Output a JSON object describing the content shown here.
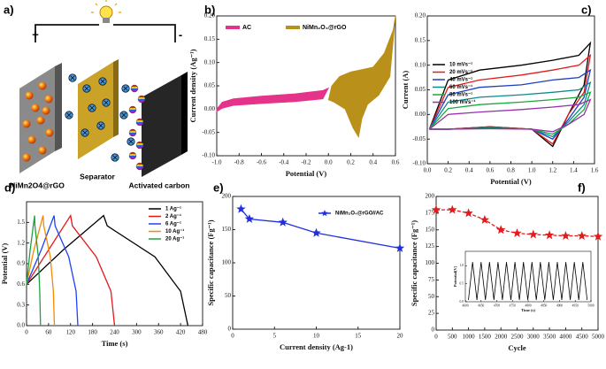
{
  "schematic": {
    "panel_label": "a)",
    "plus_sign": "+",
    "minus_sign": "-",
    "labels": [
      "NiMn2O4@rGO",
      "Separator",
      "Activated carbon"
    ]
  },
  "chart_data": [
    {
      "type": "area",
      "panel_label": "b)",
      "xlabel": "Potential (V)",
      "ylabel": "Current density (Ag⁻¹)",
      "legend": "top",
      "xlim": [
        -1.0,
        0.6
      ],
      "xticks": [
        {
          "value": -1.0,
          "label": "-1.0"
        },
        -0.8,
        -0.6,
        -0.4,
        -0.2,
        {
          "value": 0,
          "label": "0.0"
        },
        0.2,
        0.4,
        0.6
      ],
      "ylim": [
        -0.1,
        0.2
      ],
      "yticks": [
        {
          "value": -0.1,
          "label": "-0.10"
        },
        -0.05,
        {
          "value": 0,
          "label": "0.00"
        },
        0.05,
        {
          "value": 0.1,
          "label": "0.10"
        },
        0.15,
        {
          "value": 0.2,
          "label": "0.20"
        }
      ],
      "series": [
        {
          "name": "AC",
          "color": "#e6338a",
          "x": [
            -1.0,
            -0.95,
            -0.85,
            -0.6,
            -0.3,
            -0.05,
            0,
            -0.05,
            -0.3,
            -0.6,
            -0.85,
            -0.95,
            -1.0
          ],
          "values": [
            0,
            0.015,
            0.022,
            0.028,
            0.033,
            0.04,
            0.045,
            0.022,
            0.016,
            0.012,
            0.008,
            0.002,
            -0.005
          ]
        },
        {
          "name": "NiMn₂O₄@rGO",
          "color": "#b8901a",
          "x": [
            0,
            0.03,
            0.1,
            0.2,
            0.3,
            0.4,
            0.5,
            0.58,
            0.6,
            0.55,
            0.45,
            0.35,
            0.3,
            0.27,
            0.22,
            0.15,
            0.05,
            0
          ],
          "values": [
            0.02,
            0.05,
            0.07,
            0.08,
            0.085,
            0.09,
            0.12,
            0.17,
            0.2,
            0.07,
            0.03,
            0.01,
            -0.02,
            -0.06,
            -0.04,
            0,
            0.015,
            0.02
          ]
        }
      ]
    },
    {
      "type": "line",
      "panel_label": "c)",
      "xlabel": "Potential (V)",
      "ylabel": "Current (A)",
      "legend": "center left",
      "xlim": [
        0,
        1.6
      ],
      "xticks": [
        {
          "value": 0,
          "label": "0.0"
        },
        0.2,
        0.4,
        0.6,
        0.8,
        {
          "value": 1,
          "label": "1.0"
        },
        1.2,
        1.4,
        1.6
      ],
      "ylim": [
        -0.1,
        0.2
      ],
      "yticks": [
        {
          "value": -0.1,
          "label": "-0.10"
        },
        -0.05,
        {
          "value": 0,
          "label": "0.00"
        },
        0.05,
        {
          "value": 0.1,
          "label": "0.10"
        },
        0.15,
        {
          "value": 0.2,
          "label": "0.20"
        }
      ],
      "x": [
        0.02,
        0.2,
        0.5,
        0.9,
        1.2,
        1.45,
        1.56,
        1.5,
        1.35,
        1.2,
        1.0,
        0.6,
        0.2,
        0.02
      ],
      "series": [
        {
          "name": "10 mVs⁻¹",
          "color": "#000000",
          "values": [
            -0.03,
            0.07,
            0.09,
            0.1,
            0.11,
            0.12,
            0.145,
            0.06,
            0,
            -0.065,
            -0.03,
            -0.025,
            -0.03,
            -0.03
          ]
        },
        {
          "name": "20 mVs⁻¹",
          "color": "#e31a1c",
          "values": [
            -0.03,
            0.055,
            0.07,
            0.08,
            0.09,
            0.1,
            0.12,
            0.045,
            0,
            -0.06,
            -0.03,
            -0.025,
            -0.03,
            -0.03
          ]
        },
        {
          "name": "40 mVs⁻¹",
          "color": "#1f3fbf",
          "values": [
            -0.03,
            0.04,
            0.055,
            0.06,
            0.07,
            0.075,
            0.09,
            0.035,
            -0.01,
            -0.05,
            -0.03,
            -0.027,
            -0.03,
            -0.03
          ]
        },
        {
          "name": "60 mVs⁻¹",
          "color": "#0e8a8a",
          "values": [
            -0.03,
            0.025,
            0.035,
            0.04,
            0.045,
            0.05,
            0.065,
            0.02,
            -0.015,
            -0.045,
            -0.03,
            -0.028,
            -0.03,
            -0.03
          ]
        },
        {
          "name": "80 mVs⁻¹",
          "color": "#1aa83a",
          "values": [
            -0.03,
            0.012,
            0.02,
            0.025,
            0.03,
            0.035,
            0.045,
            0.01,
            -0.02,
            -0.04,
            -0.03,
            -0.028,
            -0.03,
            -0.03
          ]
        },
        {
          "name": "100 mVs⁻¹",
          "color": "#9b2fae",
          "values": [
            -0.03,
            0,
            0.005,
            0.01,
            0.015,
            0.02,
            0.03,
            0,
            -0.02,
            -0.035,
            -0.03,
            -0.029,
            -0.03,
            -0.03
          ]
        }
      ]
    },
    {
      "type": "line",
      "panel_label": "d)",
      "xlabel": "Time (s)",
      "ylabel": "Potential (V)",
      "legend": "upper right",
      "xlim": [
        0,
        480
      ],
      "xticks": [
        0,
        60,
        120,
        180,
        240,
        300,
        360,
        420,
        480
      ],
      "ylim": [
        0,
        1.8
      ],
      "yticks": [
        {
          "value": 0,
          "label": "0.0"
        },
        0.3,
        0.6,
        0.9,
        1.2,
        1.5
      ],
      "series": [
        {
          "name": "1 Ag⁻¹",
          "color": "#000000",
          "x": [
            0,
            100,
            210,
            220,
            350,
            420,
            440
          ],
          "values": [
            0.6,
            1.1,
            1.6,
            1.45,
            1.0,
            0.5,
            0
          ]
        },
        {
          "name": "2 Ag⁻¹",
          "color": "#e31a1c",
          "x": [
            0,
            60,
            120,
            125,
            190,
            230,
            240
          ],
          "values": [
            0.6,
            1.1,
            1.6,
            1.45,
            1.0,
            0.5,
            0
          ]
        },
        {
          "name": "6 Ag⁻¹",
          "color": "#2040ff",
          "x": [
            0,
            40,
            75,
            78,
            115,
            135,
            140
          ],
          "values": [
            0.6,
            1.1,
            1.6,
            1.45,
            1.0,
            0.5,
            0
          ]
        },
        {
          "name": "10 Ag⁻¹",
          "color": "#f08c00",
          "x": [
            0,
            20,
            45,
            47,
            65,
            73,
            76
          ],
          "values": [
            0.6,
            1.1,
            1.6,
            1.45,
            1.0,
            0.5,
            0
          ]
        },
        {
          "name": "20 Ag⁻¹",
          "color": "#20a040",
          "x": [
            0,
            10,
            22,
            23,
            32,
            36,
            38
          ],
          "values": [
            0.6,
            1.1,
            1.6,
            1.45,
            1.0,
            0.5,
            0
          ]
        }
      ]
    },
    {
      "type": "line",
      "panel_label": "e)",
      "xlabel": "Current density (Ag-1)",
      "ylabel": "Specific capacitance (Fg⁻¹)",
      "legend": "upper right",
      "marker": "star",
      "xlim": [
        0,
        20
      ],
      "xticks": [
        0,
        5,
        10,
        15,
        20
      ],
      "ylim": [
        0,
        200
      ],
      "yticks": [
        0,
        50,
        100,
        150,
        200
      ],
      "series": [
        {
          "name": "NiMn₂O₄@rGO//AC",
          "color": "#1f2fe0",
          "x": [
            1,
            2,
            6,
            10,
            20
          ],
          "values": [
            181,
            166,
            161,
            145,
            122
          ]
        }
      ]
    },
    {
      "type": "line",
      "panel_label": "f)",
      "xlabel": "Cycle",
      "ylabel": "Specific capacitance (Fg⁻¹)",
      "marker": "star",
      "line_style": "dashed",
      "xlim": [
        0,
        5000
      ],
      "xticks": [
        0,
        500,
        1000,
        1500,
        2000,
        2500,
        3000,
        3500,
        4000,
        4500,
        5000
      ],
      "ylim": [
        0,
        200
      ],
      "yticks": [
        0,
        25,
        50,
        75,
        100,
        125,
        150,
        175,
        200
      ],
      "series": [
        {
          "color": "#e41a1c",
          "x": [
            0,
            500,
            1000,
            1500,
            2000,
            2500,
            3000,
            3500,
            4000,
            4500,
            5000
          ],
          "values": [
            180,
            180,
            175,
            165,
            150,
            145,
            143,
            142,
            141,
            141,
            140
          ]
        }
      ],
      "inset": {
        "xlabel": "Time (s)",
        "ylabel": "Potential(V)",
        "color": "#000000",
        "xlim": [
          4600,
          5000
        ],
        "xticks": [
          4600,
          4650,
          4700,
          4750,
          4800,
          4850,
          4900,
          4950,
          5000
        ],
        "ylim": [
          0,
          1.4
        ],
        "yticks": [
          {
            "value": 0,
            "label": "0.0"
          },
          0.5,
          {
            "value": 1,
            "label": "1.0"
          }
        ],
        "x": [
          4610,
          4623,
          4637,
          4650,
          4664,
          4677,
          4691,
          4704,
          4718,
          4731,
          4745,
          4758,
          4772,
          4785,
          4799,
          4812,
          4826,
          4839,
          4853,
          4866,
          4880,
          4893,
          4907,
          4920,
          4934,
          4947,
          4961,
          4974,
          4988
        ],
        "values": [
          0.05,
          1.1,
          0.05,
          1.1,
          0.05,
          1.1,
          0.05,
          1.1,
          0.05,
          1.1,
          0.05,
          1.1,
          0.05,
          1.1,
          0.05,
          1.1,
          0.05,
          1.1,
          0.05,
          1.1,
          0.05,
          1.1,
          0.05,
          1.1,
          0.05,
          1.1,
          0.05,
          1.1,
          0.05
        ]
      }
    }
  ]
}
